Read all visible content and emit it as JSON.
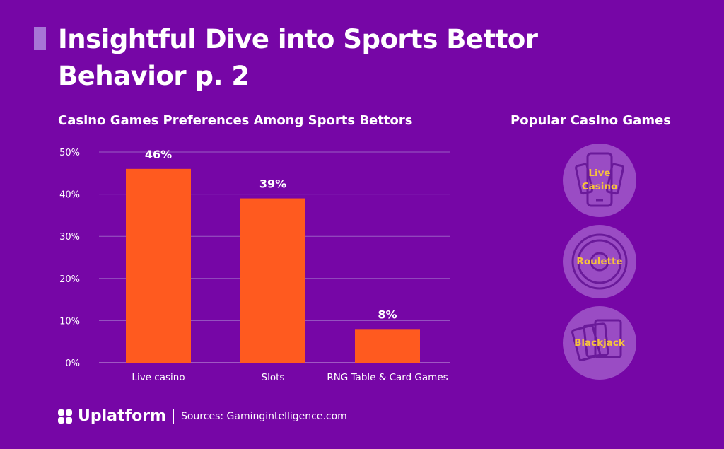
{
  "title": "Insightful Dive into Sports Bettor Behavior p. 2",
  "colors": {
    "background": "#7606a6",
    "bar": "#ff5a1f",
    "circle": "#9a4cc4",
    "circle_text": "#f7c23c",
    "accent": "#a775d6"
  },
  "chart_data": {
    "type": "bar",
    "title": "Casino Games Preferences Among Sports Bettors",
    "categories": [
      "Live casino",
      "Slots",
      "RNG Table & Card Games"
    ],
    "values": [
      46,
      39,
      8
    ],
    "data_labels": [
      "46%",
      "39%",
      "8%"
    ],
    "yticks": [
      "0%",
      "10%",
      "20%",
      "30%",
      "40%",
      "50%"
    ],
    "ylim": [
      0,
      50
    ],
    "grid": true,
    "xlabel": "",
    "ylabel": ""
  },
  "side": {
    "title": "Popular Casino Games",
    "items": [
      {
        "label": "Live Casino",
        "icon": "smartphone-cards-icon"
      },
      {
        "label": "Roulette",
        "icon": "roulette-wheel-icon"
      },
      {
        "label": "Blackjack",
        "icon": "playing-cards-icon"
      }
    ]
  },
  "footer": {
    "brand": "Uplatform",
    "source": "Sources: Gamingintelligence.com"
  }
}
